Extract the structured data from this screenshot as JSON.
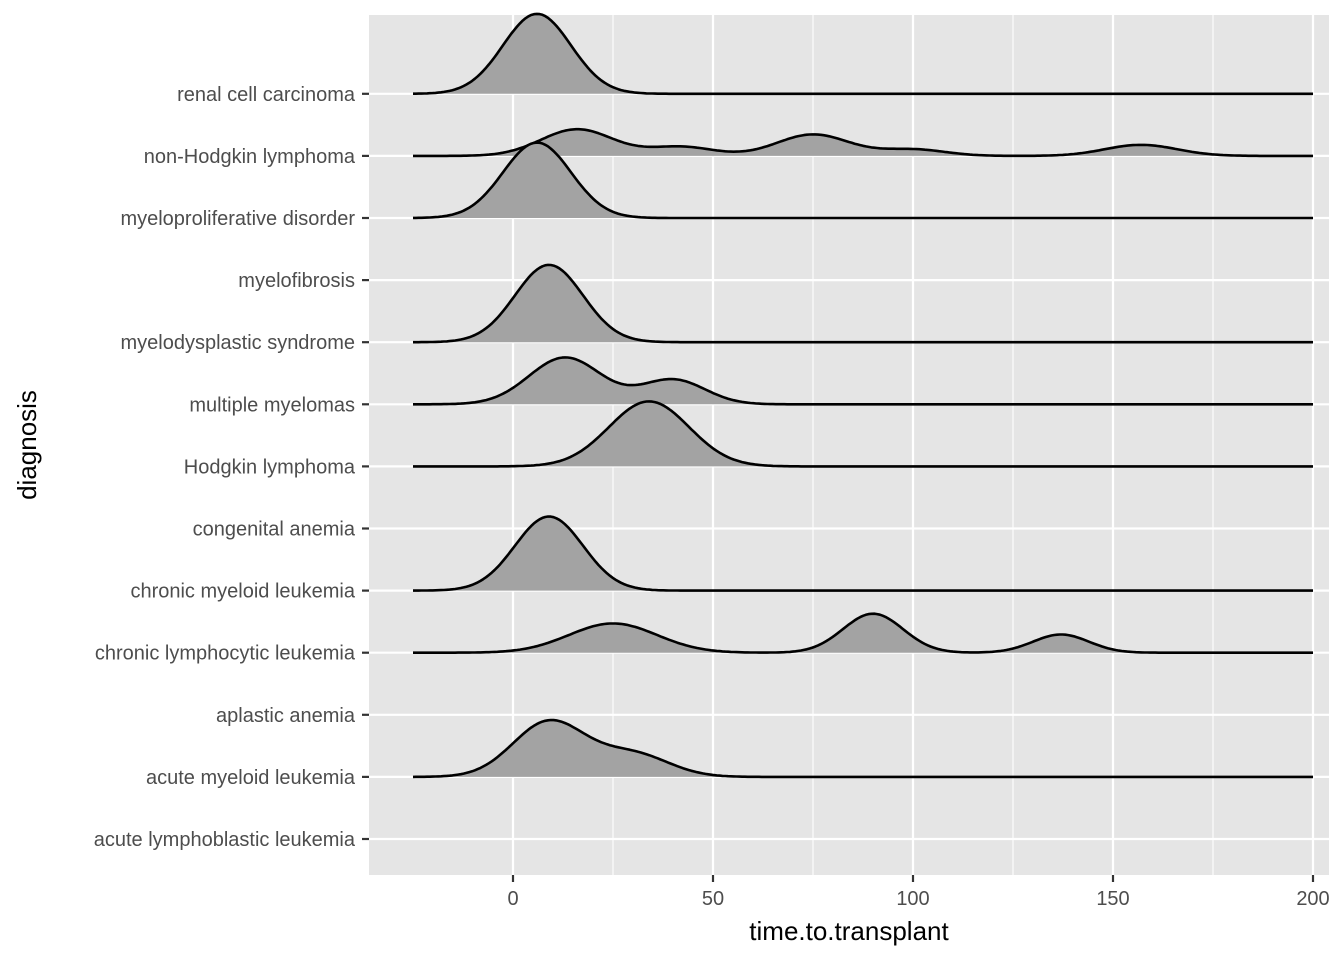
{
  "chart_data": {
    "type": "ridgeline",
    "xlabel": "time.to.transplant",
    "ylabel": "diagnosis",
    "xlim": [
      -36,
      204
    ],
    "x_ticks": [
      0,
      50,
      100,
      150,
      200
    ],
    "x_minor_ticks": [
      25,
      75,
      125,
      175
    ],
    "x_range": [
      -25,
      200
    ],
    "grid": true,
    "fill_color": "#a3a3a3",
    "panel_color": "#e5e5e5",
    "categories": [
      "acute lymphoblastic leukemia",
      "acute myeloid leukemia",
      "aplastic anemia",
      "chronic lymphocytic leukemia",
      "chronic myeloid leukemia",
      "congenital anemia",
      "Hodgkin lymphoma",
      "multiple myelomas",
      "myelodysplastic syndrome",
      "myelofibrosis",
      "myeloproliferative disorder",
      "non-Hodgkin lymphoma",
      "renal cell carcinoma"
    ],
    "series": [
      {
        "category": "acute lymphoblastic leukemia",
        "components": []
      },
      {
        "category": "acute myeloid leukemia",
        "components": [
          [
            9,
            9,
            0.85
          ],
          [
            30,
            9,
            0.35
          ]
        ]
      },
      {
        "category": "aplastic anemia",
        "components": []
      },
      {
        "category": "chronic lymphocytic leukemia",
        "components": [
          [
            25,
            11,
            0.45
          ],
          [
            90,
            7.5,
            0.6
          ],
          [
            137,
            7,
            0.28
          ]
        ]
      },
      {
        "category": "chronic myeloid leukemia",
        "components": [
          [
            9,
            8.5,
            1.14
          ]
        ]
      },
      {
        "category": "congenital anemia",
        "components": []
      },
      {
        "category": "Hodgkin lymphoma",
        "components": [
          [
            34,
            10,
            1.0
          ]
        ]
      },
      {
        "category": "multiple myelomas",
        "components": [
          [
            13,
            9,
            0.72
          ],
          [
            40,
            8,
            0.38
          ]
        ]
      },
      {
        "category": "myelodysplastic syndrome",
        "components": [
          [
            9,
            8.5,
            1.19
          ]
        ]
      },
      {
        "category": "myelofibrosis",
        "components": []
      },
      {
        "category": "myeloproliferative disorder",
        "components": [
          [
            6,
            8.5,
            1.16
          ]
        ]
      },
      {
        "category": "non-Hodgkin lymphoma",
        "components": [
          [
            16,
            9,
            0.41
          ],
          [
            42,
            8,
            0.14
          ],
          [
            75,
            9,
            0.33
          ],
          [
            100,
            8,
            0.1
          ],
          [
            157,
            9,
            0.17
          ]
        ]
      },
      {
        "category": "renal cell carcinoma",
        "components": [
          [
            6,
            8.5,
            1.23
          ]
        ]
      }
    ]
  }
}
